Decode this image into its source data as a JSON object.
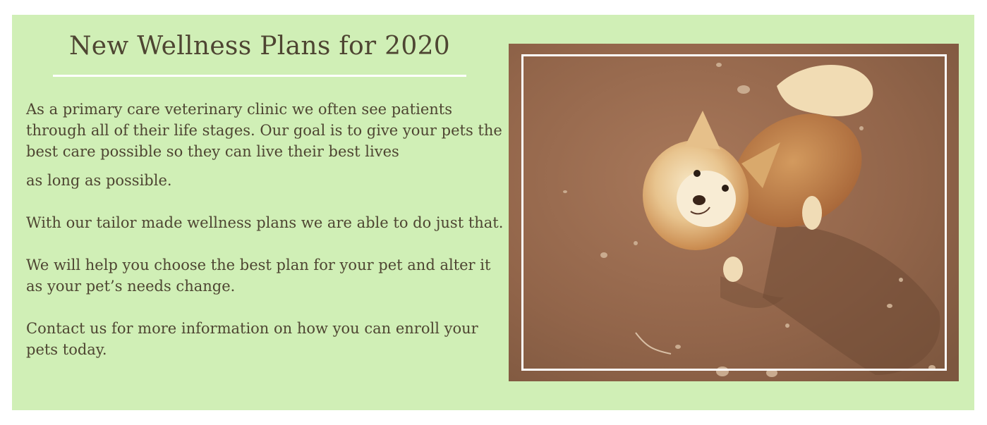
{
  "section": {
    "title": "New Wellness Plans for 2020",
    "paragraphs": {
      "p1_main": "As a primary care veterinary clinic we often see patients through all of their life stages. Our goal is to give your pets the best care possible so they can live their best lives",
      "p1_tail": "as long as possible.",
      "p2": "With our tailor made wellness plans we are able to do just that.",
      "p3": "We will help you choose the best plan for your pet and alter it as your pet’s needs change.",
      "p4": "Contact us for more information on how you can enroll your pets today."
    }
  },
  "image": {
    "subject": "dog-photo"
  },
  "colors": {
    "panel": "#d0efb6",
    "text": "#4e4532",
    "rule": "#ffffff"
  }
}
